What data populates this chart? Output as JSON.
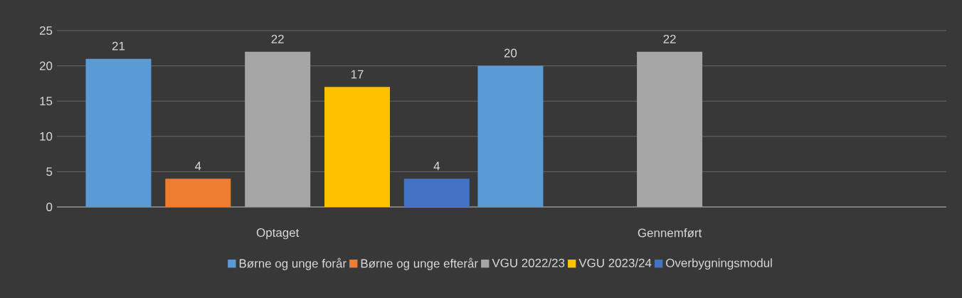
{
  "chart_data": {
    "type": "bar",
    "categories": [
      "Optaget",
      "Gennemført"
    ],
    "series": [
      {
        "name": "Børne og unge forår",
        "color": "#5b9bd5",
        "values": [
          21,
          20
        ]
      },
      {
        "name": "Børne og unge efterår",
        "color": "#ed7d31",
        "values": [
          4,
          null
        ]
      },
      {
        "name": "VGU 2022/23",
        "color": "#a5a5a5",
        "values": [
          22,
          22
        ]
      },
      {
        "name": "VGU 2023/24",
        "color": "#ffc000",
        "values": [
          17,
          null
        ]
      },
      {
        "name": "Overbygningsmodul",
        "color": "#4472c4",
        "values": [
          4,
          null
        ]
      }
    ],
    "ylim": [
      0,
      25
    ],
    "yticks": [
      0,
      5,
      10,
      15,
      20,
      25
    ],
    "grid": "y",
    "data_labels": true,
    "legend": "bottom"
  }
}
